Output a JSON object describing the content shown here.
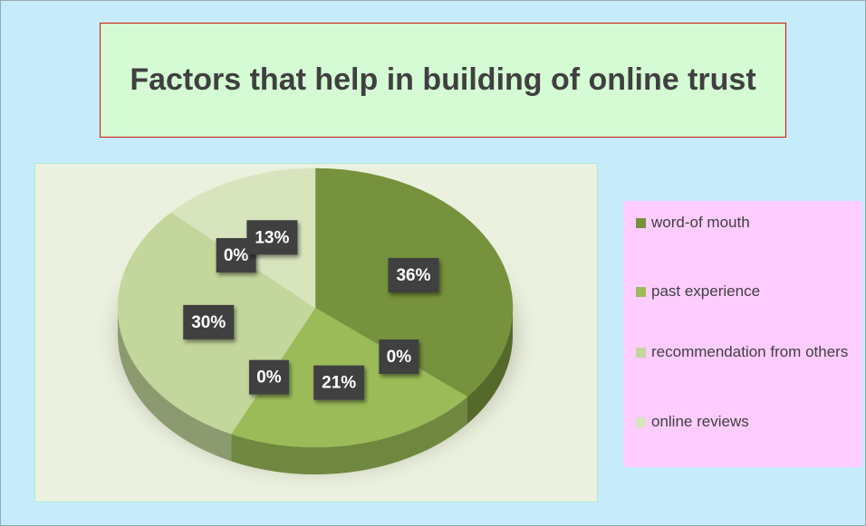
{
  "chart_data": {
    "type": "pie",
    "title": "Factors that help in building of online trust",
    "categories": [
      "word-of mouth",
      null,
      "past experience",
      null,
      "recommendation from others",
      null,
      "online reviews"
    ],
    "values": [
      36,
      0,
      21,
      0,
      30,
      0,
      13
    ],
    "value_labels": [
      "36%",
      "0%",
      "21%",
      "0%",
      "30%",
      "0%",
      "13%"
    ],
    "colors": [
      "#76923c",
      "#76923c",
      "#9bbb59",
      "#9bbb59",
      "#c3d69b",
      "#c3d69b",
      "#d7e4bd"
    ],
    "legend": "right"
  }
}
